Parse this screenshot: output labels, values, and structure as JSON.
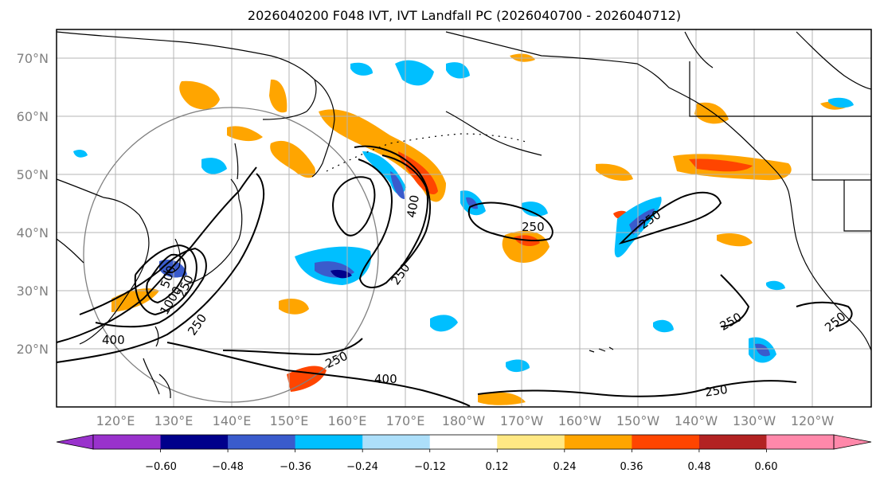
{
  "title": "2026040200 F048 IVT, IVT Landfall PC (2026040700 - 2026040712)",
  "lat_labels": [
    "70°N",
    "60°N",
    "50°N",
    "40°N",
    "30°N",
    "20°N"
  ],
  "lon_labels": [
    "120°E",
    "130°E",
    "140°E",
    "150°E",
    "160°E",
    "170°E",
    "180°W",
    "170°W",
    "160°W",
    "150°W",
    "140°W",
    "130°W",
    "120°W"
  ],
  "contour_labels": [
    "400",
    "400",
    "250",
    "250",
    "250",
    "250",
    "250",
    "250",
    "250",
    "250",
    "400",
    "1000",
    "500",
    "250"
  ],
  "colorbar": {
    "tick_labels": [
      "−0.60",
      "−0.48",
      "−0.36",
      "−0.24",
      "−0.12",
      "0.12",
      "0.24",
      "0.36",
      "0.48",
      "0.60"
    ],
    "colors": [
      "#9932CC",
      "#00008B",
      "#3A5BCC",
      "#00BFFF",
      "#ADDFFA",
      "#FFFFFF",
      "#FFE884",
      "#FFA500",
      "#FF4500",
      "#B22222",
      "#FF88AA"
    ]
  }
}
